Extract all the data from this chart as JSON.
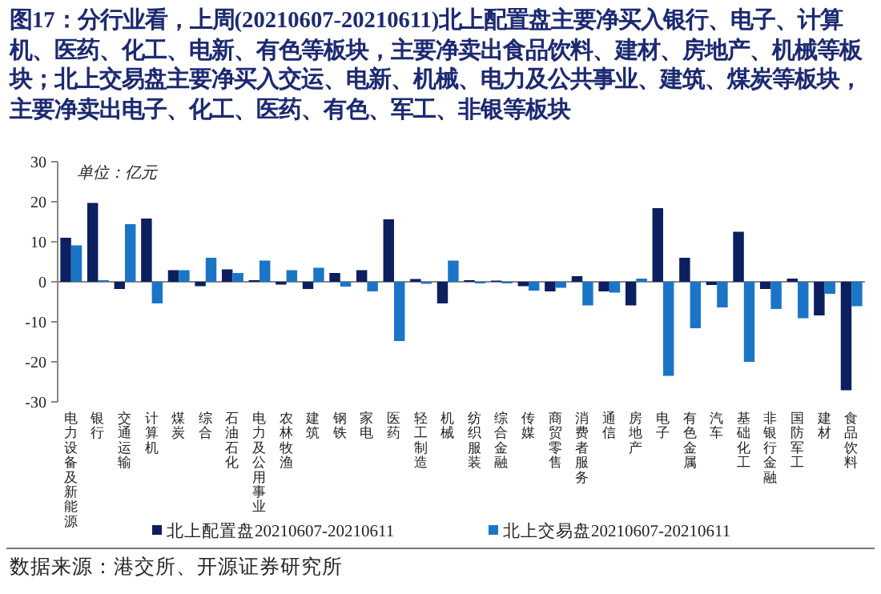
{
  "chart_data": {
    "type": "bar",
    "title": "图17：分行业看，上周(20210607-20210611)北上配置盘主要净买入银行、电子、计算机、医药、化工、电新、有色等板块，主要净卖出食品饮料、建材、房地产、机械等板块；北上交易盘主要净买入交运、电新、机械、电力及公共事业、建筑、煤炭等板块，主要净卖出电子、化工、医药、有色、军工、非银等板块",
    "categories": [
      "电力设备及新能源",
      "银行",
      "交通运输",
      "计算机",
      "煤炭",
      "综合",
      "石油石化",
      "电力及公用事业",
      "农林牧渔",
      "建筑",
      "钢铁",
      "家电",
      "医药",
      "轻工制造",
      "机械",
      "纺织服装",
      "综合金融",
      "传媒",
      "商贸零售",
      "消费者服务",
      "通信",
      "房地产",
      "电子",
      "有色金属",
      "汽车",
      "基础化工",
      "非银行金融",
      "国防军工",
      "建材",
      "食品饮料"
    ],
    "series": [
      {
        "name": "北上配置盘20210607-20210611",
        "color": "#0c1f5e",
        "values": [
          11.0,
          19.7,
          -1.8,
          15.8,
          2.9,
          -1.1,
          3.1,
          0.4,
          -0.7,
          -1.8,
          2.2,
          2.9,
          15.6,
          0.7,
          -5.4,
          0.4,
          0.3,
          -1.1,
          -2.4,
          1.4,
          -2.4,
          -5.9,
          18.4,
          6.0,
          -0.8,
          12.5,
          -1.8,
          0.8,
          -8.4,
          -27.1
        ]
      },
      {
        "name": "北上交易盘20210607-20210611",
        "color": "#1b75c6",
        "values": [
          9.1,
          0.4,
          14.4,
          -5.4,
          2.9,
          6.0,
          2.2,
          5.3,
          2.9,
          3.5,
          -1.2,
          -2.4,
          -14.8,
          -0.5,
          5.3,
          -0.4,
          -0.4,
          -2.2,
          -1.5,
          -5.9,
          -2.7,
          0.8,
          -23.5,
          -11.6,
          -6.4,
          -20.0,
          -6.8,
          -9.1,
          -3.0,
          -6.1
        ]
      }
    ],
    "ylim": [
      -30,
      30
    ],
    "yticks": [
      -30,
      -20,
      -10,
      0,
      10,
      20,
      30
    ],
    "legend": "bottom",
    "annotations": [
      "单位：亿元",
      "数据来源：港交所、开源证券研究所"
    ]
  }
}
